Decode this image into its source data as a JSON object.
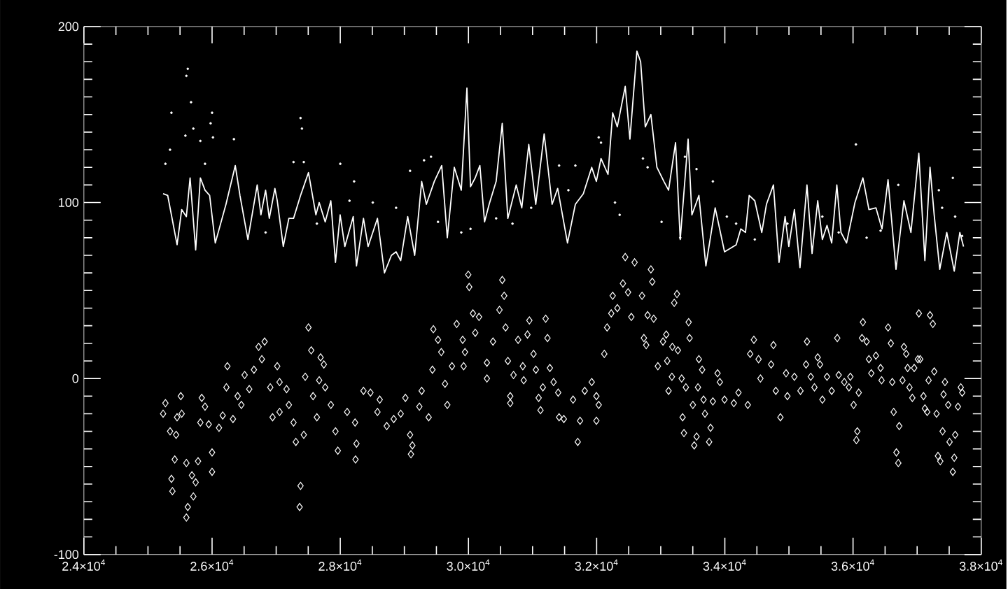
{
  "chart_data": {
    "type": "scatter",
    "xlim": [
      24000,
      38000
    ],
    "ylim": [
      -100,
      200
    ],
    "xticks": [
      {
        "value": 24000,
        "label": "2.4×10$^{4}$"
      },
      {
        "value": 26000,
        "label": "2.6×10$^{4}$"
      },
      {
        "value": 28000,
        "label": "2.8×10$^{4}$"
      },
      {
        "value": 30000,
        "label": "3.0×10$^{4}$"
      },
      {
        "value": 32000,
        "label": "3.2×10$^{4}$"
      },
      {
        "value": 34000,
        "label": "3.4×10$^{4}$"
      },
      {
        "value": 36000,
        "label": "3.6×10$^{4}$"
      },
      {
        "value": 38000,
        "label": "3.8×10$^{4}$"
      }
    ],
    "yticks": [
      -100,
      0,
      100,
      200
    ],
    "series": [
      {
        "type": "line",
        "color": "#ffffff",
        "marker": "none",
        "line_style": "solid",
        "x": [
          25236,
          25308,
          25454,
          25526,
          25599,
          25657,
          25744,
          25817,
          25890,
          25962,
          26050,
          26217,
          26362,
          26435,
          26559,
          26704,
          26762,
          26835,
          26893,
          26980,
          27017,
          27111,
          27198,
          27271,
          27380,
          27504,
          27620,
          27671,
          27765,
          27853,
          27925,
          27998,
          28071,
          28202,
          28253,
          28362,
          28434,
          28580,
          28689,
          28798,
          28871,
          28943,
          29052,
          29161,
          29270,
          29343,
          29467,
          29583,
          29670,
          29779,
          29888,
          29976,
          30032,
          30105,
          30178,
          30251,
          30323,
          30432,
          30527,
          30614,
          30745,
          30832,
          30941,
          31050,
          31181,
          31305,
          31392,
          31545,
          31668,
          31792,
          31923,
          31995,
          32068,
          32177,
          32250,
          32322,
          32446,
          32519,
          32628,
          32686,
          32759,
          32846,
          32940,
          33049,
          33122,
          33231,
          33304,
          33427,
          33486,
          33595,
          33704,
          33849,
          33995,
          34176,
          34249,
          34322,
          34380,
          34467,
          34576,
          34649,
          34758,
          34845,
          34940,
          34998,
          35085,
          35172,
          35281,
          35361,
          35449,
          35521,
          35594,
          35667,
          35747,
          35812,
          35899,
          36030,
          36154,
          36248,
          36357,
          36452,
          36546,
          36670,
          36794,
          36903,
          37026,
          37121,
          37201,
          37266,
          37353,
          37462,
          37579,
          37666,
          37724
        ],
        "values": [
          105,
          104,
          76,
          96,
          92,
          114,
          73,
          114,
          107,
          104,
          77,
          99,
          121,
          104,
          79,
          110,
          93,
          107,
          91,
          108,
          101,
          75,
          91,
          91,
          104,
          117,
          93,
          100,
          89,
          101,
          66,
          93,
          75,
          92,
          64,
          91,
          75,
          91,
          60,
          70,
          72,
          67,
          92,
          70,
          112,
          99,
          112,
          121,
          80,
          120,
          107,
          165,
          109,
          114,
          121,
          89,
          99,
          112,
          145,
          91,
          110,
          97,
          133,
          99,
          139,
          99,
          108,
          77,
          99,
          105,
          120,
          112,
          125,
          116,
          151,
          143,
          166,
          136,
          186,
          180,
          143,
          150,
          120,
          112,
          107,
          134,
          79,
          136,
          93,
          104,
          64,
          97,
          72,
          76,
          85,
          83,
          104,
          101,
          83,
          99,
          110,
          66,
          92,
          75,
          96,
          63,
          110,
          71,
          101,
          79,
          87,
          77,
          110,
          83,
          77,
          100,
          114,
          96,
          97,
          85,
          113,
          62,
          101,
          83,
          128,
          67,
          120,
          93,
          62,
          83,
          61,
          83,
          75
        ]
      },
      {
        "color": "#ffffff",
        "marker": "circle",
        "x": [
          25621,
          25599,
          25672,
          25366,
          26000,
          25708,
          25977,
          25584,
          25817,
          26014,
          26341,
          25344,
          25272,
          25890,
          27380,
          27402,
          27271,
          27431,
          28000,
          28216,
          28507,
          28871,
          29307,
          29416,
          29888,
          29525,
          26835,
          27635,
          28144,
          29089,
          32032,
          32068,
          31414,
          31668,
          31559,
          32286,
          32359,
          32722,
          32795,
          33377,
          33558,
          33813,
          30032,
          30432,
          30687,
          30978,
          33013,
          33304,
          34031,
          34176,
          36045,
          34467,
          34976,
          35521,
          35776,
          36212,
          36430,
          36706,
          37339,
          37557,
          37390,
          37593,
          37702
        ],
        "values": [
          176,
          172,
          157,
          151,
          151,
          142,
          145,
          138,
          135,
          137,
          136,
          130,
          122,
          122,
          148,
          142,
          123,
          123,
          122,
          112,
          100,
          97,
          124,
          126,
          83,
          89,
          83,
          88,
          101,
          118,
          137,
          134,
          121,
          121,
          107,
          100,
          93,
          125,
          120,
          126,
          119,
          112,
          85,
          91,
          88,
          97,
          89,
          80,
          92,
          88,
          133,
          79,
          88,
          92,
          83,
          80,
          84,
          110,
          107,
          114,
          97,
          92,
          81
        ]
      },
      {
        "color": "#ffffff",
        "marker": "diamond",
        "x": [
          25272,
          25236,
          25512,
          25526,
          25454,
          25345,
          25439,
          25839,
          25890,
          25817,
          25948,
          26108,
          26166,
          26326,
          26239,
          26224,
          26399,
          26457,
          26508,
          26580,
          26653,
          26726,
          26820,
          26777,
          27017,
          26908,
          27053,
          27162,
          27198,
          27053,
          26944,
          27271,
          27504,
          27547,
          27693,
          27744,
          27453,
          27671,
          27765,
          27576,
          27635,
          27853,
          27925,
          27307,
          27431,
          25417,
          25599,
          25781,
          25366,
          25381,
          25686,
          25744,
          25708,
          25621,
          25599,
          26000,
          26000,
          27380,
          27366,
          27962,
          28238,
          28253,
          28107,
          28231,
          28362,
          28471,
          28580,
          28616,
          28725,
          28834,
          29016,
          28943,
          29089,
          29125,
          29103,
          29270,
          29234,
          29379,
          29452,
          29525,
          29438,
          29576,
          29634,
          29670,
          29816,
          29910,
          29946,
          29743,
          29925,
          29997,
          30012,
          30070,
          30165,
          30106,
          30288,
          30288,
          30383,
          30484,
          30528,
          30557,
          30579,
          30615,
          30652,
          30652,
          30703,
          30775,
          30848,
          30862,
          30950,
          30921,
          31015,
          31052,
          31095,
          31124,
          31204,
          31233,
          31161,
          31270,
          31328,
          31400,
          31488,
          31414,
          31705,
          31741,
          31632,
          31814,
          31923,
          31996,
          32032,
          31996,
          32119,
          32163,
          32228,
          32250,
          32323,
          32410,
          32446,
          32592,
          32490,
          32541,
          32708,
          32795,
          32846,
          32868,
          32890,
          32737,
          32773,
          32955,
          33035,
          33086,
          33101,
          33210,
          33253,
          33181,
          33268,
          33174,
          33122,
          33326,
          33392,
          33435,
          33450,
          33595,
          33646,
          33581,
          33501,
          33341,
          33362,
          33559,
          33522,
          33755,
          33777,
          33690,
          33668,
          33813,
          33886,
          33922,
          33995,
          34140,
          34213,
          34358,
          34453,
          34395,
          34526,
          34555,
          34758,
          34722,
          34795,
          34867,
          34955,
          34976,
          35085,
          35180,
          35282,
          35267,
          35340,
          35398,
          35449,
          35485,
          35522,
          35594,
          35667,
          35776,
          35863,
          35958,
          35936,
          36009,
          36089,
          36067,
          36052,
          35754,
          36154,
          36140,
          36212,
          36248,
          36357,
          36285,
          36430,
          36445,
          36547,
          36590,
          36612,
          36634,
          36721,
          36677,
          36706,
          36794,
          36830,
          36852,
          36954,
          36772,
          36881,
          37027,
          37201,
          37245,
          37012,
          37048,
          37267,
          37179,
          36925,
          37099,
          37121,
          37157,
          37303,
          37434,
          37412,
          37485,
          37637,
          37681,
          37703,
          37397,
          37594,
          37506,
          37325,
          37361,
          37579,
          37557
        ],
        "values": [
          -14,
          -20,
          -10,
          -20,
          -22,
          -30,
          -32,
          -11,
          -16,
          -25,
          -26,
          -28,
          -21,
          -23,
          7,
          -5,
          -10,
          -15,
          2,
          -6,
          5,
          18,
          21,
          11,
          7,
          -5,
          -2,
          -6,
          -15,
          -19,
          -22,
          -25,
          29,
          16,
          12,
          8,
          1,
          -1,
          -5,
          -10,
          -22,
          -15,
          -30,
          -36,
          -32,
          -46,
          -48,
          -47,
          -57,
          -64,
          -55,
          -59,
          -67,
          -73,
          -79,
          -53,
          -42,
          -61,
          -73,
          -41,
          -46,
          -37,
          -19,
          -25,
          -7,
          -8,
          -19,
          -12,
          -27,
          -23,
          -11,
          -20,
          -32,
          -38,
          -43,
          -7,
          -16,
          -22,
          28,
          22,
          5,
          15,
          -3,
          -15,
          31,
          22,
          15,
          7,
          7,
          59,
          52,
          37,
          35,
          26,
          9,
          0,
          21,
          39,
          56,
          47,
          29,
          10,
          -10,
          -14,
          2,
          22,
          7,
          -1,
          33,
          25,
          14,
          5,
          -11,
          -18,
          34,
          23,
          -5,
          6,
          -2,
          -8,
          -23,
          -22,
          -36,
          -24,
          -12,
          -7,
          -2,
          -10,
          -15,
          -24,
          14,
          29,
          37,
          47,
          40,
          54,
          69,
          66,
          49,
          35,
          47,
          36,
          62,
          55,
          34,
          23,
          19,
          7,
          21,
          25,
          10,
          43,
          48,
          18,
          16,
          1,
          -7,
          0,
          -5,
          32,
          23,
          11,
          5,
          -5,
          -15,
          -22,
          -31,
          -33,
          -38,
          -36,
          -28,
          -20,
          -12,
          -13,
          3,
          -2,
          -12,
          -14,
          -8,
          -15,
          22,
          14,
          11,
          0,
          19,
          8,
          -7,
          -22,
          3,
          -10,
          1,
          -7,
          21,
          8,
          1,
          -5,
          12,
          8,
          -12,
          1,
          -7,
          2,
          -2,
          1,
          -5,
          -15,
          -8,
          -30,
          -35,
          23,
          32,
          23,
          21,
          11,
          13,
          3,
          6,
          -1,
          29,
          20,
          -2,
          -19,
          -27,
          -42,
          -48,
          18,
          14,
          6,
          6,
          -1,
          -5,
          37,
          36,
          31,
          11,
          11,
          4,
          -1,
          -11,
          -10,
          -17,
          -19,
          -20,
          -2,
          -9,
          -15,
          -16,
          -5,
          -8,
          -30,
          -32,
          -36,
          -44,
          -47,
          -45,
          -53
        ]
      }
    ]
  }
}
